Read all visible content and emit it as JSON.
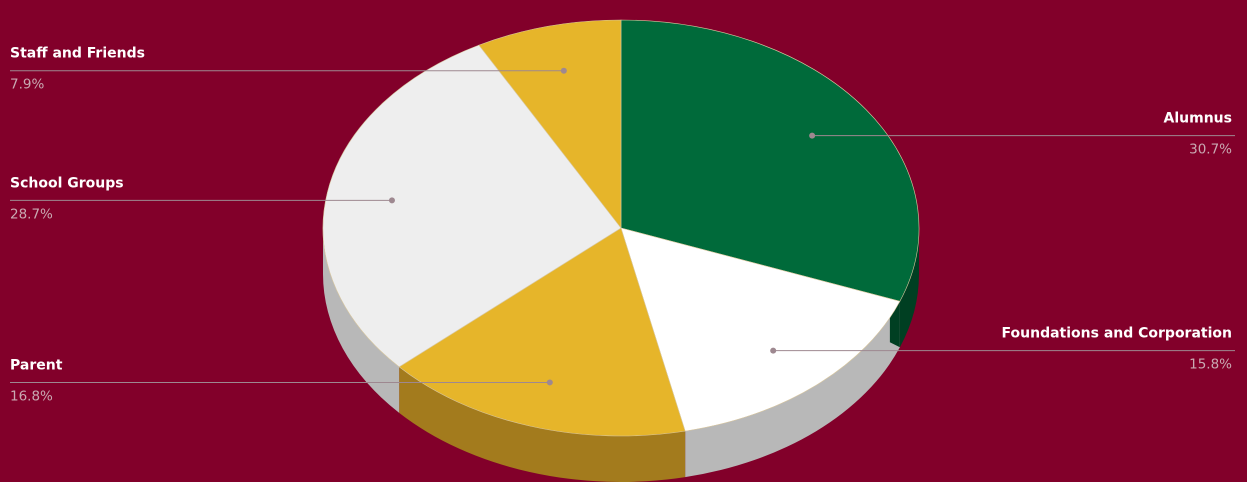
{
  "chart_data": {
    "type": "pie",
    "style": "3d",
    "colors": {
      "background": "#82002a",
      "green": "#006a3a",
      "white": "#ffffff",
      "gold": "#e6b52a",
      "light_gray": "#eeeeee",
      "side_gray": "#b8b8b8",
      "side_gold": "#a37b1d",
      "side_green": "#003f22",
      "leader_line": "#9e8890"
    },
    "slices": [
      {
        "label": "Alumnus",
        "value": 30.7,
        "display": "30.7%",
        "color": "#006a3a",
        "side_color": "#003f22"
      },
      {
        "label": "Foundations and Corporation",
        "value": 15.8,
        "display": "15.8%",
        "color": "#ffffff",
        "side_color": "#b8b8b8"
      },
      {
        "label": "Parent",
        "value": 16.8,
        "display": "16.8%",
        "color": "#e6b52a",
        "side_color": "#a37b1d"
      },
      {
        "label": "School Groups",
        "value": 28.7,
        "display": "28.7%",
        "color": "#eeeeee",
        "side_color": "#b8b8b8"
      },
      {
        "label": "Staff and Friends",
        "value": 7.9,
        "display": "7.9%",
        "color": "#e6b52a",
        "side_color": "#a37b1d"
      }
    ]
  }
}
